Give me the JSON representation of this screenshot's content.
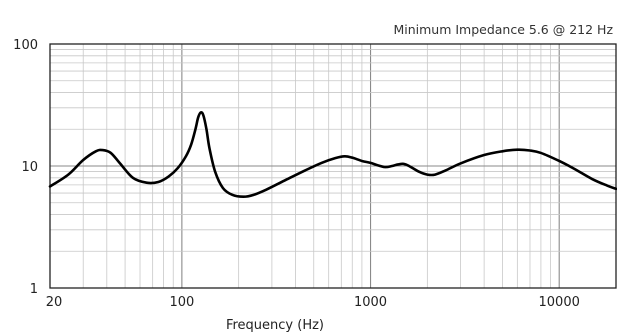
{
  "chart_data": {
    "type": "line",
    "title": "",
    "annotation": "Minimum Impedance 5.6 @ 212 Hz",
    "xlabel": "Frequency (Hz)",
    "ylabel": "",
    "x_scale": "log",
    "y_scale": "log",
    "xlim": [
      20,
      20000
    ],
    "ylim": [
      1,
      100
    ],
    "grid": true,
    "x_ticks": [
      {
        "value": 20,
        "label": "20"
      },
      {
        "value": 100,
        "label": "100"
      },
      {
        "value": 1000,
        "label": "1000"
      },
      {
        "value": 10000,
        "label": "10000"
      }
    ],
    "y_ticks": [
      {
        "value": 100,
        "label": "100"
      },
      {
        "value": 10,
        "label": "10"
      },
      {
        "value": 1,
        "label": "1"
      }
    ],
    "series": [
      {
        "color": "#000000",
        "x": [
          20,
          25,
          30,
          35,
          38,
          42,
          47,
          55,
          65,
          75,
          85,
          95,
          105,
          112,
          118,
          122,
          126,
          130,
          135,
          140,
          150,
          165,
          185,
          212,
          240,
          280,
          350,
          450,
          550,
          650,
          730,
          800,
          900,
          1000,
          1100,
          1200,
          1300,
          1400,
          1500,
          1600,
          1800,
          2000,
          2200,
          2500,
          3000,
          4000,
          5000,
          6000,
          7000,
          8000,
          10000,
          12000,
          15000,
          18000,
          20000
        ],
        "y": [
          6.8,
          8.5,
          11.2,
          13.2,
          13.5,
          12.8,
          10.5,
          8.0,
          7.3,
          7.4,
          8.2,
          9.6,
          12.0,
          15.0,
          20.0,
          25.0,
          27.5,
          26.0,
          20.0,
          14.0,
          9.0,
          6.6,
          5.8,
          5.6,
          5.8,
          6.4,
          7.6,
          9.2,
          10.6,
          11.6,
          12.0,
          11.7,
          11.0,
          10.6,
          10.1,
          9.8,
          10.0,
          10.3,
          10.4,
          10.0,
          9.0,
          8.5,
          8.5,
          9.2,
          10.5,
          12.3,
          13.2,
          13.6,
          13.4,
          12.8,
          11.0,
          9.5,
          7.8,
          6.9,
          6.5
        ]
      }
    ]
  }
}
